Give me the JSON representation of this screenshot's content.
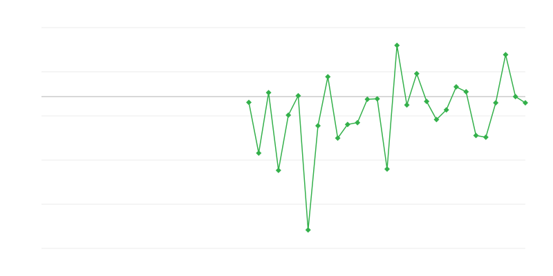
{
  "chart_data": {
    "type": "line",
    "title": "",
    "xlabel": "",
    "ylabel": "",
    "xlim": [
      0,
      49
    ],
    "ylim": [
      -34.375,
      15.625
    ],
    "grid": true,
    "baseline": 0,
    "legend": "none",
    "colors": {
      "series": "#33b04a",
      "grid": "#ebebeb",
      "baseline": "#b0b0b0"
    },
    "marker": "diamond",
    "series": [
      {
        "x": [
          21,
          22,
          23,
          24,
          25,
          26,
          27,
          28,
          29,
          30,
          31,
          32,
          33,
          34,
          35,
          36,
          37,
          38,
          39,
          40,
          41,
          42,
          43,
          44,
          45,
          46,
          47,
          48,
          49
        ],
        "values": [
          -1.3,
          -12.8,
          0.9,
          -16.7,
          -4.2,
          0.2,
          -30.2,
          -6.6,
          4.5,
          -9.4,
          -6.3,
          -5.9,
          -0.6,
          -0.5,
          -16.4,
          11.6,
          -1.9,
          5.2,
          -1.1,
          -5.2,
          -3.0,
          2.2,
          1.1,
          -8.8,
          -9.2,
          -1.4,
          9.5,
          0.0,
          -1.4
        ]
      }
    ]
  }
}
